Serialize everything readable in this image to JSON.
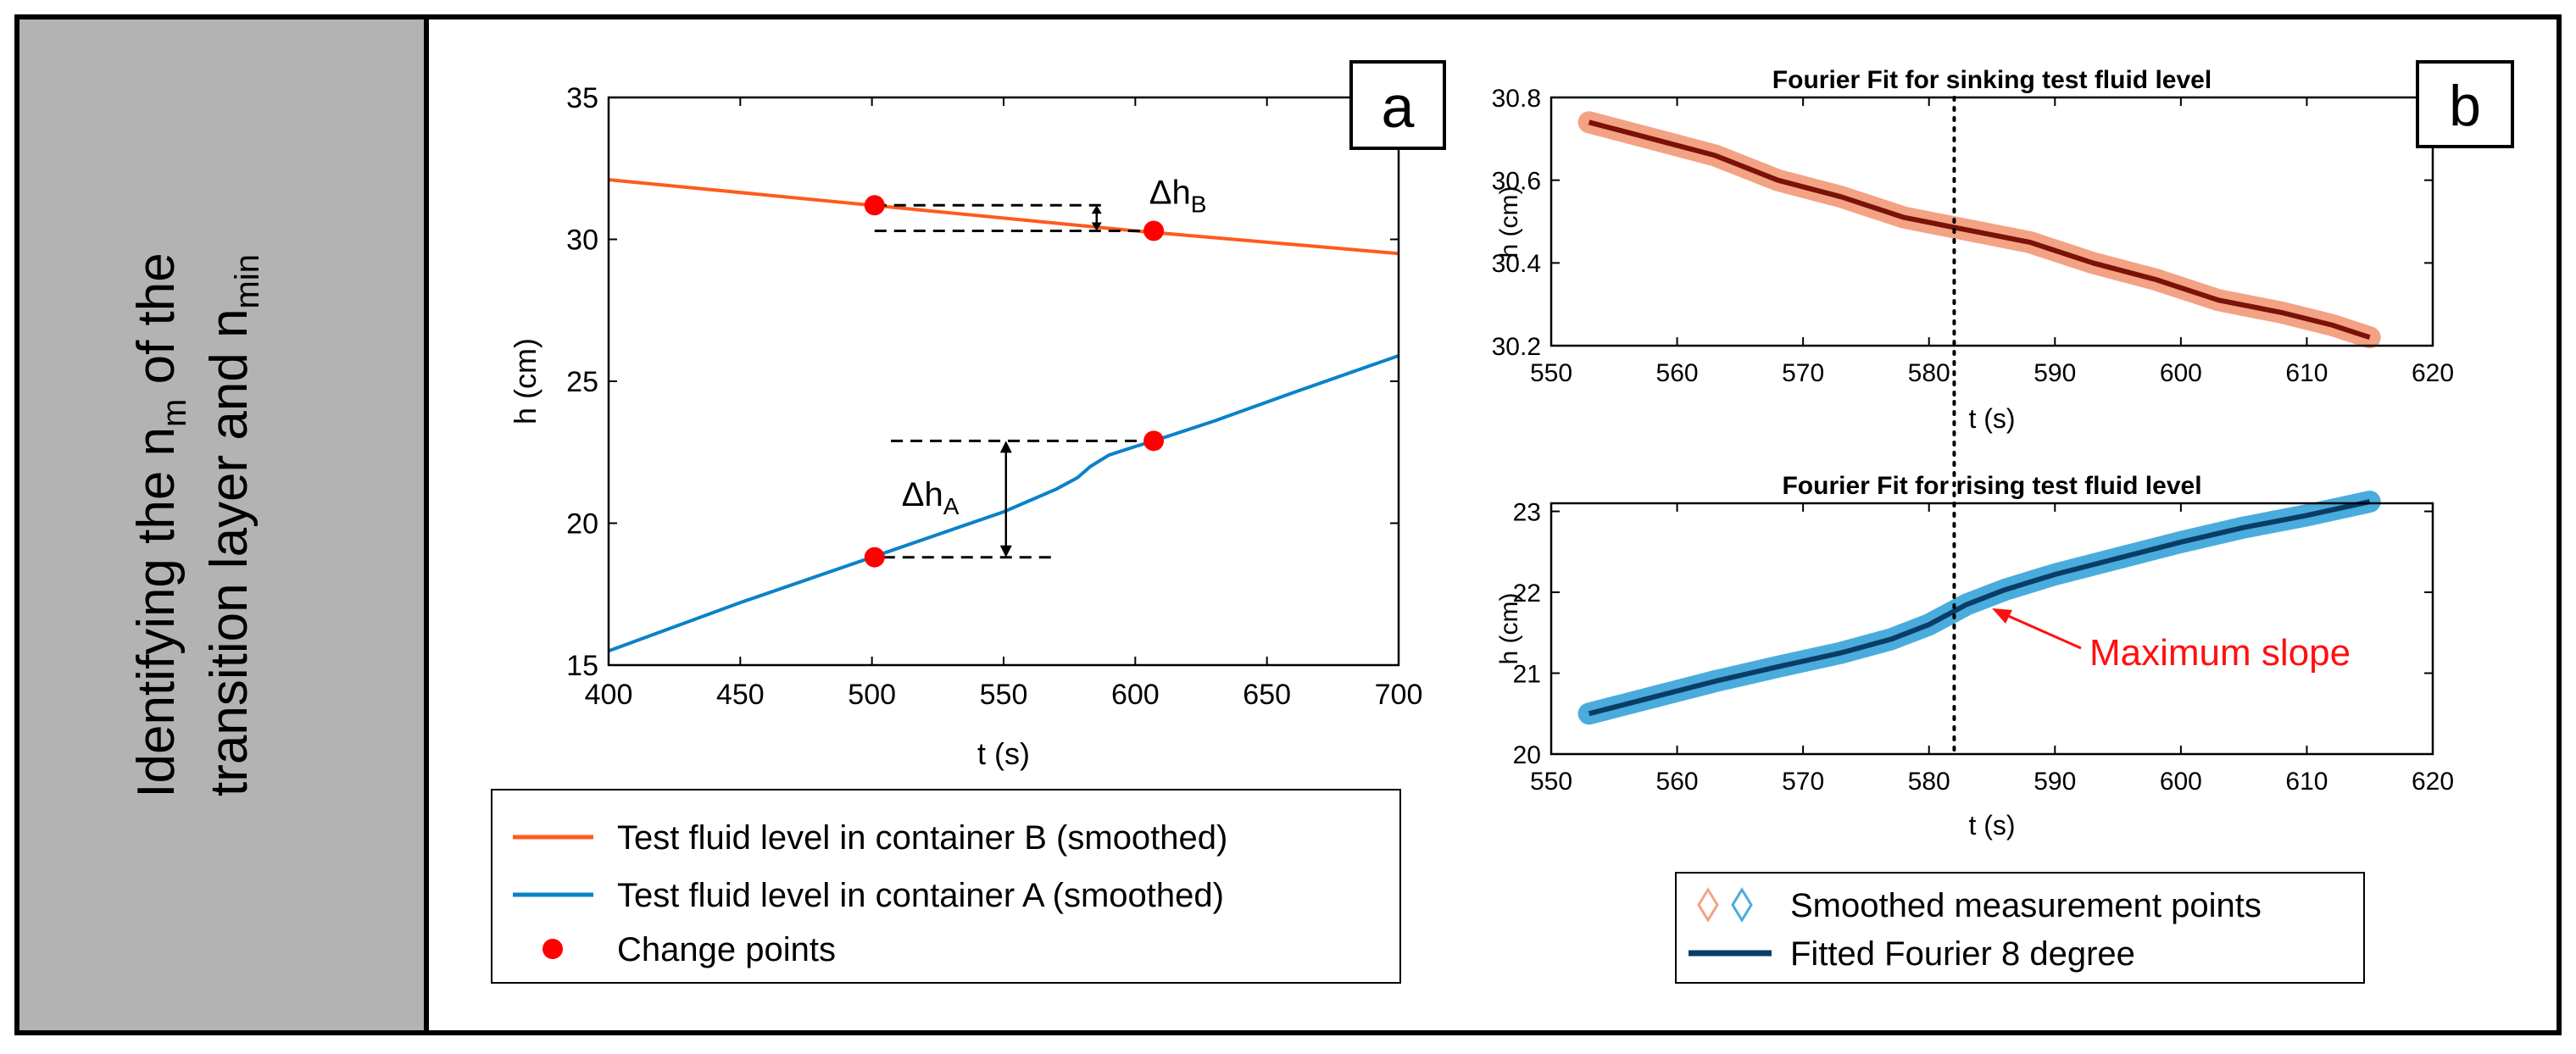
{
  "side_label": {
    "line1": "Identifying the n",
    "line1_sub": "m",
    "line1_tail": " of the",
    "line2": "transition layer and n",
    "line2_sub": "min"
  },
  "colors": {
    "side_bg": "#b3b3b3",
    "orange": "#ff5a1e",
    "blue": "#0a82c8",
    "red_point": "#ff0000",
    "orange_band": "#f4a284",
    "blue_band": "#4aacdc",
    "fit_dark_blue": "#0a3d66",
    "fit_dark_red": "#7a1208",
    "annotation_red": "#ff1010"
  },
  "chart_data": [
    {
      "id": "a",
      "type": "line",
      "panel_label": "a",
      "xlabel": "t (s)",
      "ylabel": "h (cm)",
      "xlim": [
        400,
        700
      ],
      "ylim": [
        15,
        35
      ],
      "xticks": [
        400,
        450,
        500,
        550,
        600,
        650,
        700
      ],
      "yticks": [
        15,
        20,
        25,
        30,
        35
      ],
      "series": [
        {
          "name": "Test fluid level in container B (smoothed)",
          "color": "#ff5a1e",
          "x": [
            400,
            500,
            550,
            600,
            650,
            700
          ],
          "y": [
            32.1,
            31.2,
            30.75,
            30.3,
            29.9,
            29.5
          ]
        },
        {
          "name": "Test fluid level in container A (smoothed)",
          "color": "#0a82c8",
          "x": [
            400,
            450,
            500,
            550,
            570,
            578,
            583,
            590,
            600,
            607,
            630,
            660,
            700
          ],
          "y": [
            15.5,
            17.2,
            18.8,
            20.4,
            21.2,
            21.6,
            22.0,
            22.4,
            22.7,
            22.9,
            23.6,
            24.6,
            25.9
          ]
        }
      ],
      "change_points": {
        "name": "Change points",
        "x": [
          501,
          607,
          501,
          607
        ],
        "y": [
          31.2,
          30.3,
          18.8,
          22.9
        ]
      },
      "annotations": [
        {
          "text": "Δh",
          "sub": "B"
        },
        {
          "text": "Δh",
          "sub": "A"
        }
      ],
      "legend": {
        "placement": "below",
        "entries": [
          "Test fluid level in container B (smoothed)",
          "Test fluid level in container A (smoothed)",
          "Change points"
        ]
      }
    },
    {
      "id": "b_top",
      "type": "line",
      "panel_label": "b",
      "title": "Fourier Fit for sinking test fluid level",
      "xlabel": "t (s)",
      "ylabel": "h (cm)",
      "xlim": [
        550,
        620
      ],
      "ylim": [
        30.2,
        30.8
      ],
      "xticks": [
        550,
        560,
        570,
        580,
        590,
        600,
        610,
        620
      ],
      "yticks": [
        30.2,
        30.4,
        30.6,
        30.8
      ],
      "ytick_labels": [
        "30.2",
        "30.4",
        "30.6",
        "30.8"
      ],
      "vline_x": 582,
      "x": [
        553,
        558,
        563,
        568,
        573,
        578,
        583,
        588,
        593,
        598,
        603,
        608,
        612,
        615
      ],
      "y": [
        30.74,
        30.7,
        30.66,
        30.6,
        30.56,
        30.51,
        30.48,
        30.45,
        30.4,
        30.36,
        30.31,
        30.28,
        30.25,
        30.22
      ]
    },
    {
      "id": "b_bottom",
      "type": "line",
      "title": "Fourier Fit for rising test fluid level",
      "xlabel": "t (s)",
      "ylabel": "h (cm)",
      "xlim": [
        550,
        620
      ],
      "ylim": [
        20,
        23.1
      ],
      "xticks": [
        550,
        560,
        570,
        580,
        590,
        600,
        610,
        620
      ],
      "yticks": [
        20,
        21,
        22,
        23
      ],
      "vline_x": 582,
      "x": [
        553,
        558,
        563,
        568,
        573,
        577,
        580,
        583,
        586,
        590,
        595,
        600,
        605,
        610,
        615
      ],
      "y": [
        20.5,
        20.7,
        20.9,
        21.08,
        21.25,
        21.42,
        21.6,
        21.85,
        22.03,
        22.22,
        22.42,
        22.62,
        22.8,
        22.95,
        23.12
      ],
      "annotation": {
        "text": "Maximum slope",
        "x": 582,
        "y": 21.75
      },
      "legend": {
        "placement": "below",
        "entries": [
          "Smoothed measurement points",
          "Fitted Fourier 8 degree"
        ]
      }
    }
  ]
}
